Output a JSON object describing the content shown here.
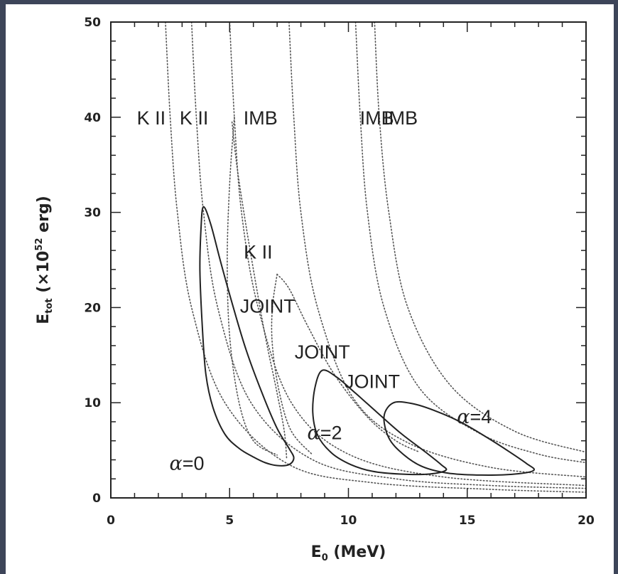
{
  "colors": {
    "background": "#3d4559",
    "panel": "#ffffff",
    "ink": "#222222",
    "dotted": "#555555"
  },
  "chart_data": {
    "type": "line",
    "title": "",
    "xlabel": "E₀  (MeV)",
    "ylabel": "E_tot  (×10⁵² erg)",
    "ylabel_parts": {
      "base": "E",
      "sub": "tot",
      "open": "  (",
      "times": "×",
      "ten": "10",
      "exp": "52",
      "unit": " erg)"
    },
    "xlabel_parts": {
      "base": "E",
      "sub": "0",
      "unit": "  (MeV)"
    },
    "xlim": [
      0,
      20
    ],
    "ylim": [
      0,
      50
    ],
    "x_ticks": [
      "0",
      "5",
      "10",
      "15",
      "20"
    ],
    "y_ticks": [
      "0",
      "10",
      "20",
      "30",
      "40",
      "50"
    ],
    "grid": false,
    "legend": "none",
    "solid_contours": [
      {
        "name": "α=0",
        "points": [
          [
            3.9,
            30.6
          ],
          [
            4.2,
            28.8
          ],
          [
            4.6,
            25
          ],
          [
            5.1,
            20.5
          ],
          [
            5.7,
            15.5
          ],
          [
            6.4,
            10.8
          ],
          [
            7.0,
            7.3
          ],
          [
            7.5,
            5.2
          ],
          [
            7.7,
            4.2
          ],
          [
            7.5,
            3.5
          ],
          [
            7.0,
            3.4
          ],
          [
            6.5,
            3.7
          ],
          [
            6.0,
            4.3
          ],
          [
            5.4,
            5.2
          ],
          [
            4.8,
            6.7
          ],
          [
            4.3,
            9.5
          ],
          [
            4.0,
            13
          ],
          [
            3.85,
            18
          ],
          [
            3.75,
            24
          ],
          [
            3.8,
            28.5
          ],
          [
            3.9,
            30.6
          ]
        ]
      },
      {
        "name": "α=2",
        "points": [
          [
            8.9,
            13.4
          ],
          [
            9.5,
            12.7
          ],
          [
            10.3,
            11.0
          ],
          [
            11.2,
            9.0
          ],
          [
            12.2,
            6.8
          ],
          [
            13.2,
            4.9
          ],
          [
            13.9,
            3.5
          ],
          [
            14.1,
            2.9
          ],
          [
            13.4,
            2.5
          ],
          [
            12.2,
            2.5
          ],
          [
            11.0,
            2.8
          ],
          [
            10.1,
            3.5
          ],
          [
            9.3,
            4.7
          ],
          [
            8.7,
            6.6
          ],
          [
            8.5,
            9.0
          ],
          [
            8.6,
            11.7
          ],
          [
            8.9,
            13.4
          ]
        ]
      },
      {
        "name": "α=4",
        "points": [
          [
            11.5,
            8.6
          ],
          [
            11.9,
            10.0
          ],
          [
            12.7,
            9.9
          ],
          [
            13.6,
            9.2
          ],
          [
            14.7,
            8.0
          ],
          [
            15.8,
            6.4
          ],
          [
            16.8,
            4.8
          ],
          [
            17.5,
            3.6
          ],
          [
            17.8,
            2.9
          ],
          [
            17.0,
            2.5
          ],
          [
            15.6,
            2.4
          ],
          [
            14.2,
            2.6
          ],
          [
            13.1,
            3.3
          ],
          [
            12.3,
            4.6
          ],
          [
            11.7,
            6.3
          ],
          [
            11.5,
            8.6
          ]
        ]
      }
    ],
    "dotted_curves": [
      {
        "points": [
          [
            2.3,
            50
          ],
          [
            2.5,
            40
          ],
          [
            2.8,
            30
          ],
          [
            3.4,
            20
          ],
          [
            4.8,
            10
          ],
          [
            7.5,
            3.5
          ],
          [
            11,
            1.6
          ],
          [
            16,
            0.9
          ],
          [
            20,
            0.6
          ]
        ]
      },
      {
        "points": [
          [
            3.4,
            50
          ],
          [
            3.6,
            40
          ],
          [
            3.9,
            30
          ],
          [
            4.5,
            20
          ],
          [
            5.9,
            10
          ],
          [
            8.5,
            4
          ],
          [
            12,
            2
          ],
          [
            16,
            1.3
          ],
          [
            20,
            1.0
          ]
        ]
      },
      {
        "points": [
          [
            5.0,
            50
          ],
          [
            5.2,
            40
          ],
          [
            5.5,
            30
          ],
          [
            6.2,
            20
          ],
          [
            7.6,
            10
          ],
          [
            10,
            4.6
          ],
          [
            14,
            2.2
          ],
          [
            20,
            1.3
          ]
        ]
      },
      {
        "points": [
          [
            7.5,
            50
          ],
          [
            7.7,
            40
          ],
          [
            8.0,
            30
          ],
          [
            8.7,
            20
          ],
          [
            10.2,
            10.5
          ],
          [
            12.5,
            5.8
          ],
          [
            16,
            3.2
          ],
          [
            20,
            2.2
          ]
        ]
      },
      {
        "points": [
          [
            10.3,
            50
          ],
          [
            10.5,
            40
          ],
          [
            10.8,
            30
          ],
          [
            11.5,
            20
          ],
          [
            13,
            11.5
          ],
          [
            15.5,
            6.8
          ],
          [
            18,
            4.6
          ],
          [
            20,
            3.7
          ]
        ]
      },
      {
        "points": [
          [
            11.1,
            50
          ],
          [
            11.3,
            40
          ],
          [
            11.7,
            30
          ],
          [
            12.5,
            20
          ],
          [
            14.3,
            11.8
          ],
          [
            17,
            7
          ],
          [
            20,
            4.8
          ]
        ]
      },
      {
        "points": [
          [
            5.1,
            39.5
          ],
          [
            5.3,
            35
          ],
          [
            5.6,
            30
          ],
          [
            6.0,
            24
          ],
          [
            6.5,
            17
          ],
          [
            7.0,
            11
          ],
          [
            7.3,
            7
          ],
          [
            7.4,
            4.2
          ]
        ]
      },
      {
        "points": [
          [
            5.2,
            40
          ],
          [
            5.0,
            33
          ],
          [
            4.9,
            25
          ],
          [
            5.0,
            17
          ],
          [
            5.4,
            10
          ],
          [
            6.0,
            6
          ],
          [
            7.0,
            4.5
          ]
        ]
      },
      {
        "points": [
          [
            7.0,
            23.5
          ],
          [
            7.5,
            22
          ],
          [
            8.3,
            18
          ],
          [
            9.4,
            13
          ],
          [
            10.8,
            8.5
          ],
          [
            12,
            6
          ],
          [
            13,
            4.8
          ]
        ]
      },
      {
        "points": [
          [
            7.0,
            23.5
          ],
          [
            6.8,
            20
          ],
          [
            6.8,
            16
          ],
          [
            7.1,
            11
          ],
          [
            7.6,
            7
          ],
          [
            8.5,
            4.5
          ]
        ]
      }
    ],
    "annotations": [
      {
        "text": "K II",
        "x": 1.7,
        "y": 40
      },
      {
        "text": "K II",
        "x": 3.5,
        "y": 40
      },
      {
        "text": "IMB",
        "x": 6.3,
        "y": 40
      },
      {
        "text": "IMB",
        "x": 11.2,
        "y": 40
      },
      {
        "text": "IMB",
        "x": 12.2,
        "y": 40
      },
      {
        "text": "K II",
        "x": 6.2,
        "y": 25.9
      },
      {
        "text": "JOINT",
        "x": 6.6,
        "y": 20.2
      },
      {
        "text": "JOINT",
        "x": 8.9,
        "y": 15.4
      },
      {
        "text": "JOINT",
        "x": 11.0,
        "y": 12.3
      },
      {
        "text": "α=0",
        "x": 3.2,
        "y": 3.7,
        "alpha": true
      },
      {
        "text": "α=2",
        "x": 9.0,
        "y": 6.9,
        "alpha": true
      },
      {
        "text": "α=4",
        "x": 15.3,
        "y": 8.6,
        "alpha": true
      }
    ]
  }
}
